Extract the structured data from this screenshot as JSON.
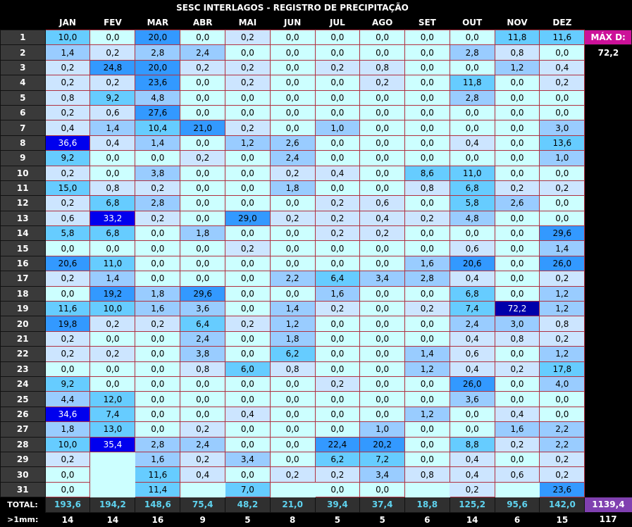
{
  "title": "SESC INTERLAGOS - REGISTRO DE PRECIPITAÇÃO",
  "months": [
    "JAN",
    "FEV",
    "MAR",
    "ABR",
    "MAI",
    "JUN",
    "JUL",
    "AGO",
    "SET",
    "OUT",
    "NOV",
    "DEZ"
  ],
  "max_label": "MÁX D:",
  "max_value": "72,2",
  "rows": [
    {
      "day": "1",
      "vals": [
        "10,0",
        "0,0",
        "20,0",
        "0,0",
        "0,2",
        "0,0",
        "0,0",
        "0,0",
        "0,0",
        "0,0",
        "11,8",
        "11,6"
      ]
    },
    {
      "day": "2",
      "vals": [
        "1,4",
        "0,2",
        "2,8",
        "2,4",
        "0,0",
        "0,0",
        "0,0",
        "0,0",
        "0,0",
        "2,8",
        "0,8",
        "0,0"
      ]
    },
    {
      "day": "3",
      "vals": [
        "0,2",
        "24,8",
        "20,0",
        "0,2",
        "0,2",
        "0,0",
        "0,2",
        "0,8",
        "0,0",
        "0,0",
        "1,2",
        "0,4"
      ]
    },
    {
      "day": "4",
      "vals": [
        "0,2",
        "0,2",
        "23,6",
        "0,0",
        "0,2",
        "0,0",
        "0,0",
        "0,2",
        "0,0",
        "11,8",
        "0,0",
        "0,2"
      ]
    },
    {
      "day": "5",
      "vals": [
        "0,8",
        "9,2",
        "4,8",
        "0,0",
        "0,0",
        "0,0",
        "0,0",
        "0,0",
        "0,0",
        "2,8",
        "0,0",
        "0,0"
      ]
    },
    {
      "day": "6",
      "vals": [
        "0,2",
        "0,6",
        "27,6",
        "0,0",
        "0,0",
        "0,0",
        "0,0",
        "0,0",
        "0,0",
        "0,0",
        "0,0",
        "0,0"
      ]
    },
    {
      "day": "7",
      "vals": [
        "0,4",
        "1,4",
        "10,4",
        "21,0",
        "0,2",
        "0,0",
        "1,0",
        "0,0",
        "0,0",
        "0,0",
        "0,0",
        "3,0"
      ]
    },
    {
      "day": "8",
      "vals": [
        "36,6",
        "0,4",
        "1,4",
        "0,0",
        "1,2",
        "2,6",
        "0,0",
        "0,0",
        "0,0",
        "0,4",
        "0,0",
        "13,6"
      ]
    },
    {
      "day": "9",
      "vals": [
        "9,2",
        "0,0",
        "0,0",
        "0,2",
        "0,0",
        "2,4",
        "0,0",
        "0,0",
        "0,0",
        "0,0",
        "0,0",
        "1,0"
      ]
    },
    {
      "day": "10",
      "vals": [
        "0,2",
        "0,0",
        "3,8",
        "0,0",
        "0,0",
        "0,2",
        "0,4",
        "0,0",
        "8,6",
        "11,0",
        "0,0",
        "0,0"
      ]
    },
    {
      "day": "11",
      "vals": [
        "15,0",
        "0,8",
        "0,2",
        "0,0",
        "0,0",
        "1,8",
        "0,0",
        "0,0",
        "0,8",
        "6,8",
        "0,2",
        "0,2"
      ]
    },
    {
      "day": "12",
      "vals": [
        "0,2",
        "6,8",
        "2,8",
        "0,0",
        "0,0",
        "0,0",
        "0,2",
        "0,6",
        "0,0",
        "5,8",
        "2,6",
        "0,0"
      ]
    },
    {
      "day": "13",
      "vals": [
        "0,6",
        "33,2",
        "0,2",
        "0,0",
        "29,0",
        "0,2",
        "0,2",
        "0,4",
        "0,2",
        "4,8",
        "0,0",
        "0,0"
      ]
    },
    {
      "day": "14",
      "vals": [
        "5,8",
        "6,8",
        "0,0",
        "1,8",
        "0,0",
        "0,0",
        "0,2",
        "0,2",
        "0,0",
        "0,0",
        "0,0",
        "29,6"
      ]
    },
    {
      "day": "15",
      "vals": [
        "0,0",
        "0,0",
        "0,0",
        "0,0",
        "0,2",
        "0,0",
        "0,0",
        "0,0",
        "0,0",
        "0,6",
        "0,0",
        "1,4"
      ]
    },
    {
      "day": "16",
      "vals": [
        "20,6",
        "11,0",
        "0,0",
        "0,0",
        "0,0",
        "0,0",
        "0,0",
        "0,0",
        "1,6",
        "20,6",
        "0,0",
        "26,0"
      ]
    },
    {
      "day": "17",
      "vals": [
        "0,2",
        "1,4",
        "0,0",
        "0,0",
        "0,0",
        "2,2",
        "6,4",
        "3,4",
        "2,8",
        "0,4",
        "0,0",
        "0,2"
      ]
    },
    {
      "day": "18",
      "vals": [
        "0,0",
        "19,2",
        "1,8",
        "29,6",
        "0,0",
        "0,0",
        "1,6",
        "0,0",
        "0,0",
        "6,8",
        "0,0",
        "1,2"
      ]
    },
    {
      "day": "19",
      "vals": [
        "11,6",
        "10,0",
        "1,6",
        "3,6",
        "0,0",
        "1,4",
        "0,2",
        "0,0",
        "0,2",
        "7,4",
        "72,2",
        "1,2"
      ]
    },
    {
      "day": "20",
      "vals": [
        "19,8",
        "0,2",
        "0,2",
        "6,4",
        "0,2",
        "1,2",
        "0,0",
        "0,0",
        "0,0",
        "2,4",
        "3,0",
        "0,8"
      ]
    },
    {
      "day": "21",
      "vals": [
        "0,2",
        "0,0",
        "0,0",
        "2,4",
        "0,0",
        "1,8",
        "0,0",
        "0,0",
        "0,0",
        "0,4",
        "0,8",
        "0,2"
      ]
    },
    {
      "day": "22",
      "vals": [
        "0,2",
        "0,2",
        "0,0",
        "3,8",
        "0,0",
        "6,2",
        "0,0",
        "0,0",
        "1,4",
        "0,6",
        "0,0",
        "1,2"
      ]
    },
    {
      "day": "23",
      "vals": [
        "0,0",
        "0,0",
        "0,0",
        "0,8",
        "6,0",
        "0,8",
        "0,0",
        "0,0",
        "1,2",
        "0,4",
        "0,2",
        "17,8"
      ]
    },
    {
      "day": "24",
      "vals": [
        "9,2",
        "0,0",
        "0,0",
        "0,0",
        "0,0",
        "0,0",
        "0,2",
        "0,0",
        "0,0",
        "26,0",
        "0,0",
        "4,0"
      ]
    },
    {
      "day": "25",
      "vals": [
        "4,4",
        "12,0",
        "0,0",
        "0,0",
        "0,0",
        "0,0",
        "0,0",
        "0,0",
        "0,0",
        "3,6",
        "0,0",
        "0,0"
      ]
    },
    {
      "day": "26",
      "vals": [
        "34,6",
        "7,4",
        "0,0",
        "0,0",
        "0,4",
        "0,0",
        "0,0",
        "0,0",
        "1,2",
        "0,0",
        "0,4",
        "0,0"
      ]
    },
    {
      "day": "27",
      "vals": [
        "1,8",
        "13,0",
        "0,0",
        "0,2",
        "0,0",
        "0,0",
        "0,0",
        "1,0",
        "0,0",
        "0,0",
        "1,6",
        "2,2"
      ]
    },
    {
      "day": "28",
      "vals": [
        "10,0",
        "35,4",
        "2,8",
        "2,4",
        "0,0",
        "0,0",
        "22,4",
        "20,2",
        "0,0",
        "8,8",
        "0,2",
        "2,2"
      ]
    },
    {
      "day": "29",
      "vals": [
        "0,2",
        "",
        "1,6",
        "0,2",
        "3,4",
        "0,0",
        "6,2",
        "7,2",
        "0,0",
        "0,4",
        "0,0",
        "0,2"
      ]
    },
    {
      "day": "30",
      "vals": [
        "0,0",
        "",
        "11,6",
        "0,4",
        "0,0",
        "0,2",
        "0,2",
        "3,4",
        "0,8",
        "0,4",
        "0,6",
        "0,2"
      ]
    },
    {
      "day": "31",
      "vals": [
        "0,0",
        "",
        "11,4",
        "",
        "7,0",
        "",
        "0,0",
        "0,0",
        "",
        "0,2",
        "",
        "23,6"
      ]
    }
  ],
  "totals_label": "TOTAL:",
  "totals": [
    "193,6",
    "194,2",
    "148,6",
    "75,4",
    "48,2",
    "21,0",
    "39,4",
    "37,4",
    "18,8",
    "125,2",
    "95,6",
    "142,0"
  ],
  "grand_total": "1139,4",
  "count_label": ">1mm:",
  "counts": [
    "14",
    "14",
    "16",
    "9",
    "5",
    "8",
    "5",
    "5",
    "6",
    "14",
    "6",
    "15"
  ],
  "count_total": "117"
}
